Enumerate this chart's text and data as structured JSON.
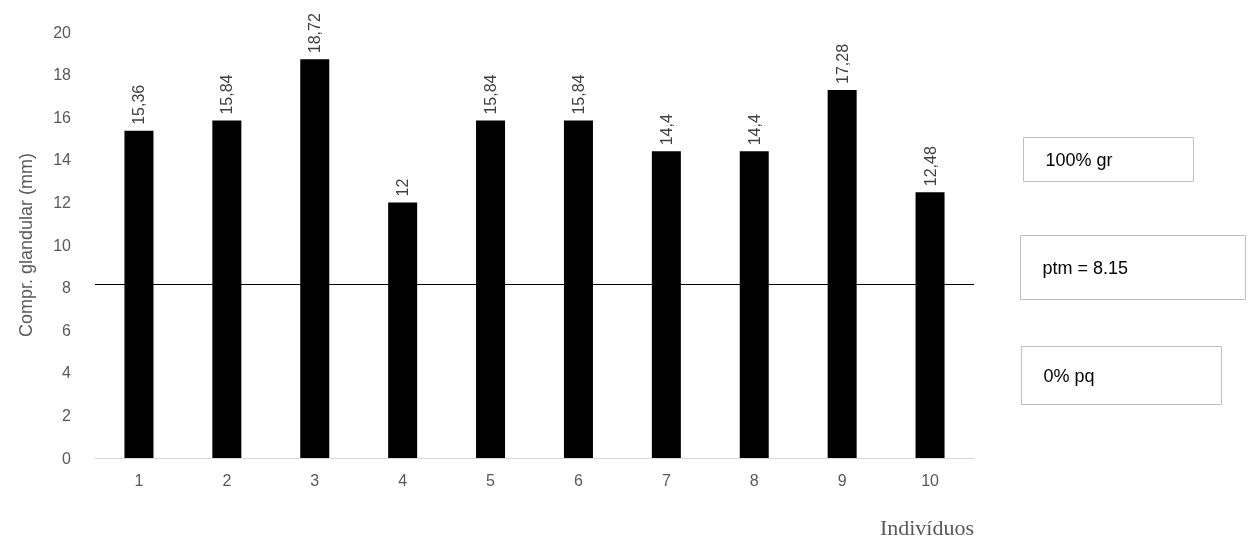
{
  "chart_data": {
    "type": "bar",
    "xlabel": "Indivíduos",
    "ylabel": "Compr. glandular (mm)",
    "categories": [
      "1",
      "2",
      "3",
      "4",
      "5",
      "6",
      "7",
      "8",
      "9",
      "10"
    ],
    "values": [
      15.36,
      15.84,
      18.72,
      12,
      15.84,
      15.84,
      14.4,
      14.4,
      17.28,
      12.48
    ],
    "value_labels": [
      "15,36",
      "15,84",
      "18,72",
      "12",
      "15,84",
      "15,84",
      "14,4",
      "14,4",
      "17,28",
      "12,48"
    ],
    "color": "#000000",
    "ylim": [
      0,
      20
    ],
    "yticks": [
      0,
      2,
      4,
      6,
      8,
      10,
      12,
      14,
      16,
      18,
      20
    ],
    "grid": false,
    "ref_lines": [
      {
        "axis": "y",
        "value": 8.15,
        "label": "ptm = 8.15",
        "color": "#000000"
      }
    ],
    "annotations": [
      "100% gr",
      "0% pq"
    ]
  }
}
